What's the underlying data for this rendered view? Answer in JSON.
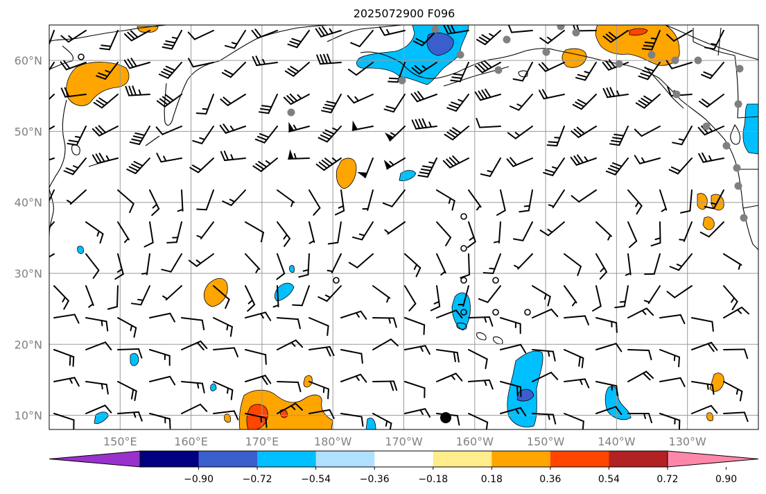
{
  "title": "2025072900 F096",
  "map": {
    "projection": "PlateCarree",
    "lon_range": [
      140,
      240
    ],
    "lat_range": [
      8,
      65
    ],
    "lat_ticks": [
      {
        "value": 60,
        "label": "60°N"
      },
      {
        "value": 50,
        "label": "50°N"
      },
      {
        "value": 40,
        "label": "40°N"
      },
      {
        "value": 30,
        "label": "30°N"
      },
      {
        "value": 20,
        "label": "20°N"
      },
      {
        "value": 10,
        "label": "10°N"
      }
    ],
    "lon_ticks": [
      {
        "value": 150,
        "label": "150°E"
      },
      {
        "value": 160,
        "label": "160°E"
      },
      {
        "value": 170,
        "label": "170°E"
      },
      {
        "value": 180,
        "label": "180°W"
      },
      {
        "value": 190,
        "label": "170°W"
      },
      {
        "value": 200,
        "label": "160°W"
      },
      {
        "value": 210,
        "label": "150°W"
      },
      {
        "value": 220,
        "label": "140°W"
      },
      {
        "value": 230,
        "label": "130°W"
      }
    ],
    "gridlines": true,
    "coastlines": true,
    "wind_barbs": true,
    "station_markers": "grey filled circles",
    "calm_markers": "open circles",
    "colors": {
      "grid": "#9a9a9a",
      "tick_label": "#808080",
      "station_marker": "#808080"
    }
  },
  "colorbar": {
    "orientation": "horizontal",
    "extend": "both",
    "levels": [
      -1.08,
      -0.9,
      -0.72,
      -0.54,
      -0.36,
      -0.18,
      0.18,
      0.36,
      0.54,
      0.72,
      0.9,
      1.08
    ],
    "colors": [
      "#9932cc",
      "#000080",
      "#3a5fcd",
      "#00bfff",
      "#b0e0ff",
      "#ffffff",
      "#ffec8b",
      "#ffa500",
      "#ff4500",
      "#b22222",
      "#ff88aa"
    ],
    "labels": [
      "−0.90",
      "−0.72",
      "−0.54",
      "−0.36",
      "−0.18",
      "0.18",
      "0.36",
      "0.54",
      "0.72",
      "0.90"
    ]
  }
}
